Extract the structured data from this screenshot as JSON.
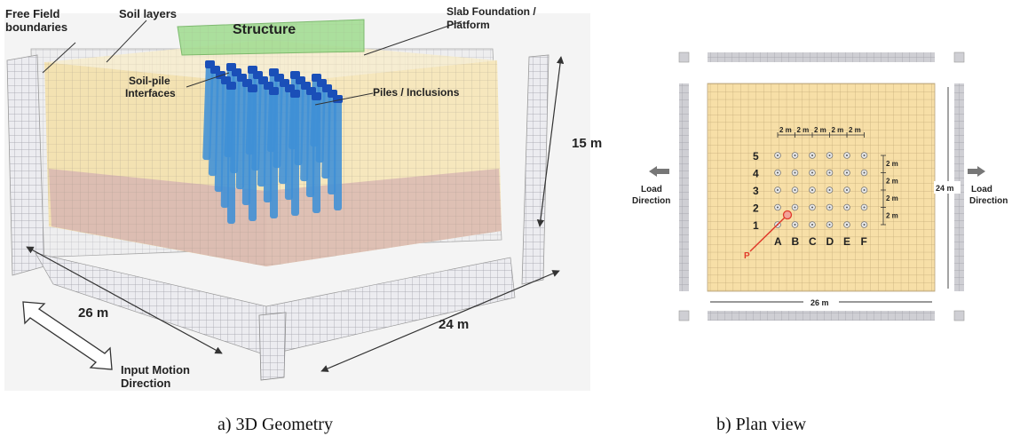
{
  "panel_a": {
    "caption": "a) 3D Geometry",
    "labels": {
      "free_field_1": "Free Field",
      "free_field_2": "boundaries",
      "soil_layers": "Soil layers",
      "structure": "Structure",
      "slab_1": "Slab Foundation /",
      "slab_2": "Platform",
      "soil_pile_1": "Soil-pile",
      "soil_pile_2": "Interfaces",
      "piles": "Piles / Inclusions",
      "height": "15 m",
      "width_26": "26 m",
      "depth_24": "24 m",
      "input_motion_1": "Input Motion",
      "input_motion_2": "Direction"
    },
    "colors": {
      "soil_upper": "#f5e6b8",
      "soil_lower": "#d9b7b2",
      "boundary": "#e9e9ee",
      "structure": "#9fdc8f",
      "pile": "#3f8fd6",
      "pile_top": "#1a4fb8"
    }
  },
  "panel_b": {
    "caption": "b) Plan view",
    "rows": [
      "5",
      "4",
      "3",
      "2",
      "1"
    ],
    "cols": [
      "A",
      "B",
      "C",
      "D",
      "E",
      "F"
    ],
    "spacing_label": "2 m",
    "point_label": "P",
    "width_label": "26 m",
    "height_label": "24 m",
    "load_left_1": "Load",
    "load_left_2": "Direction",
    "load_right_1": "Load",
    "load_right_2": "Direction",
    "colors": {
      "soil": "#f7dfa7",
      "grid": "#c9b07f",
      "boundary": "#cfcfd4",
      "point": "#e03a2a",
      "arrow": "#777777"
    }
  }
}
